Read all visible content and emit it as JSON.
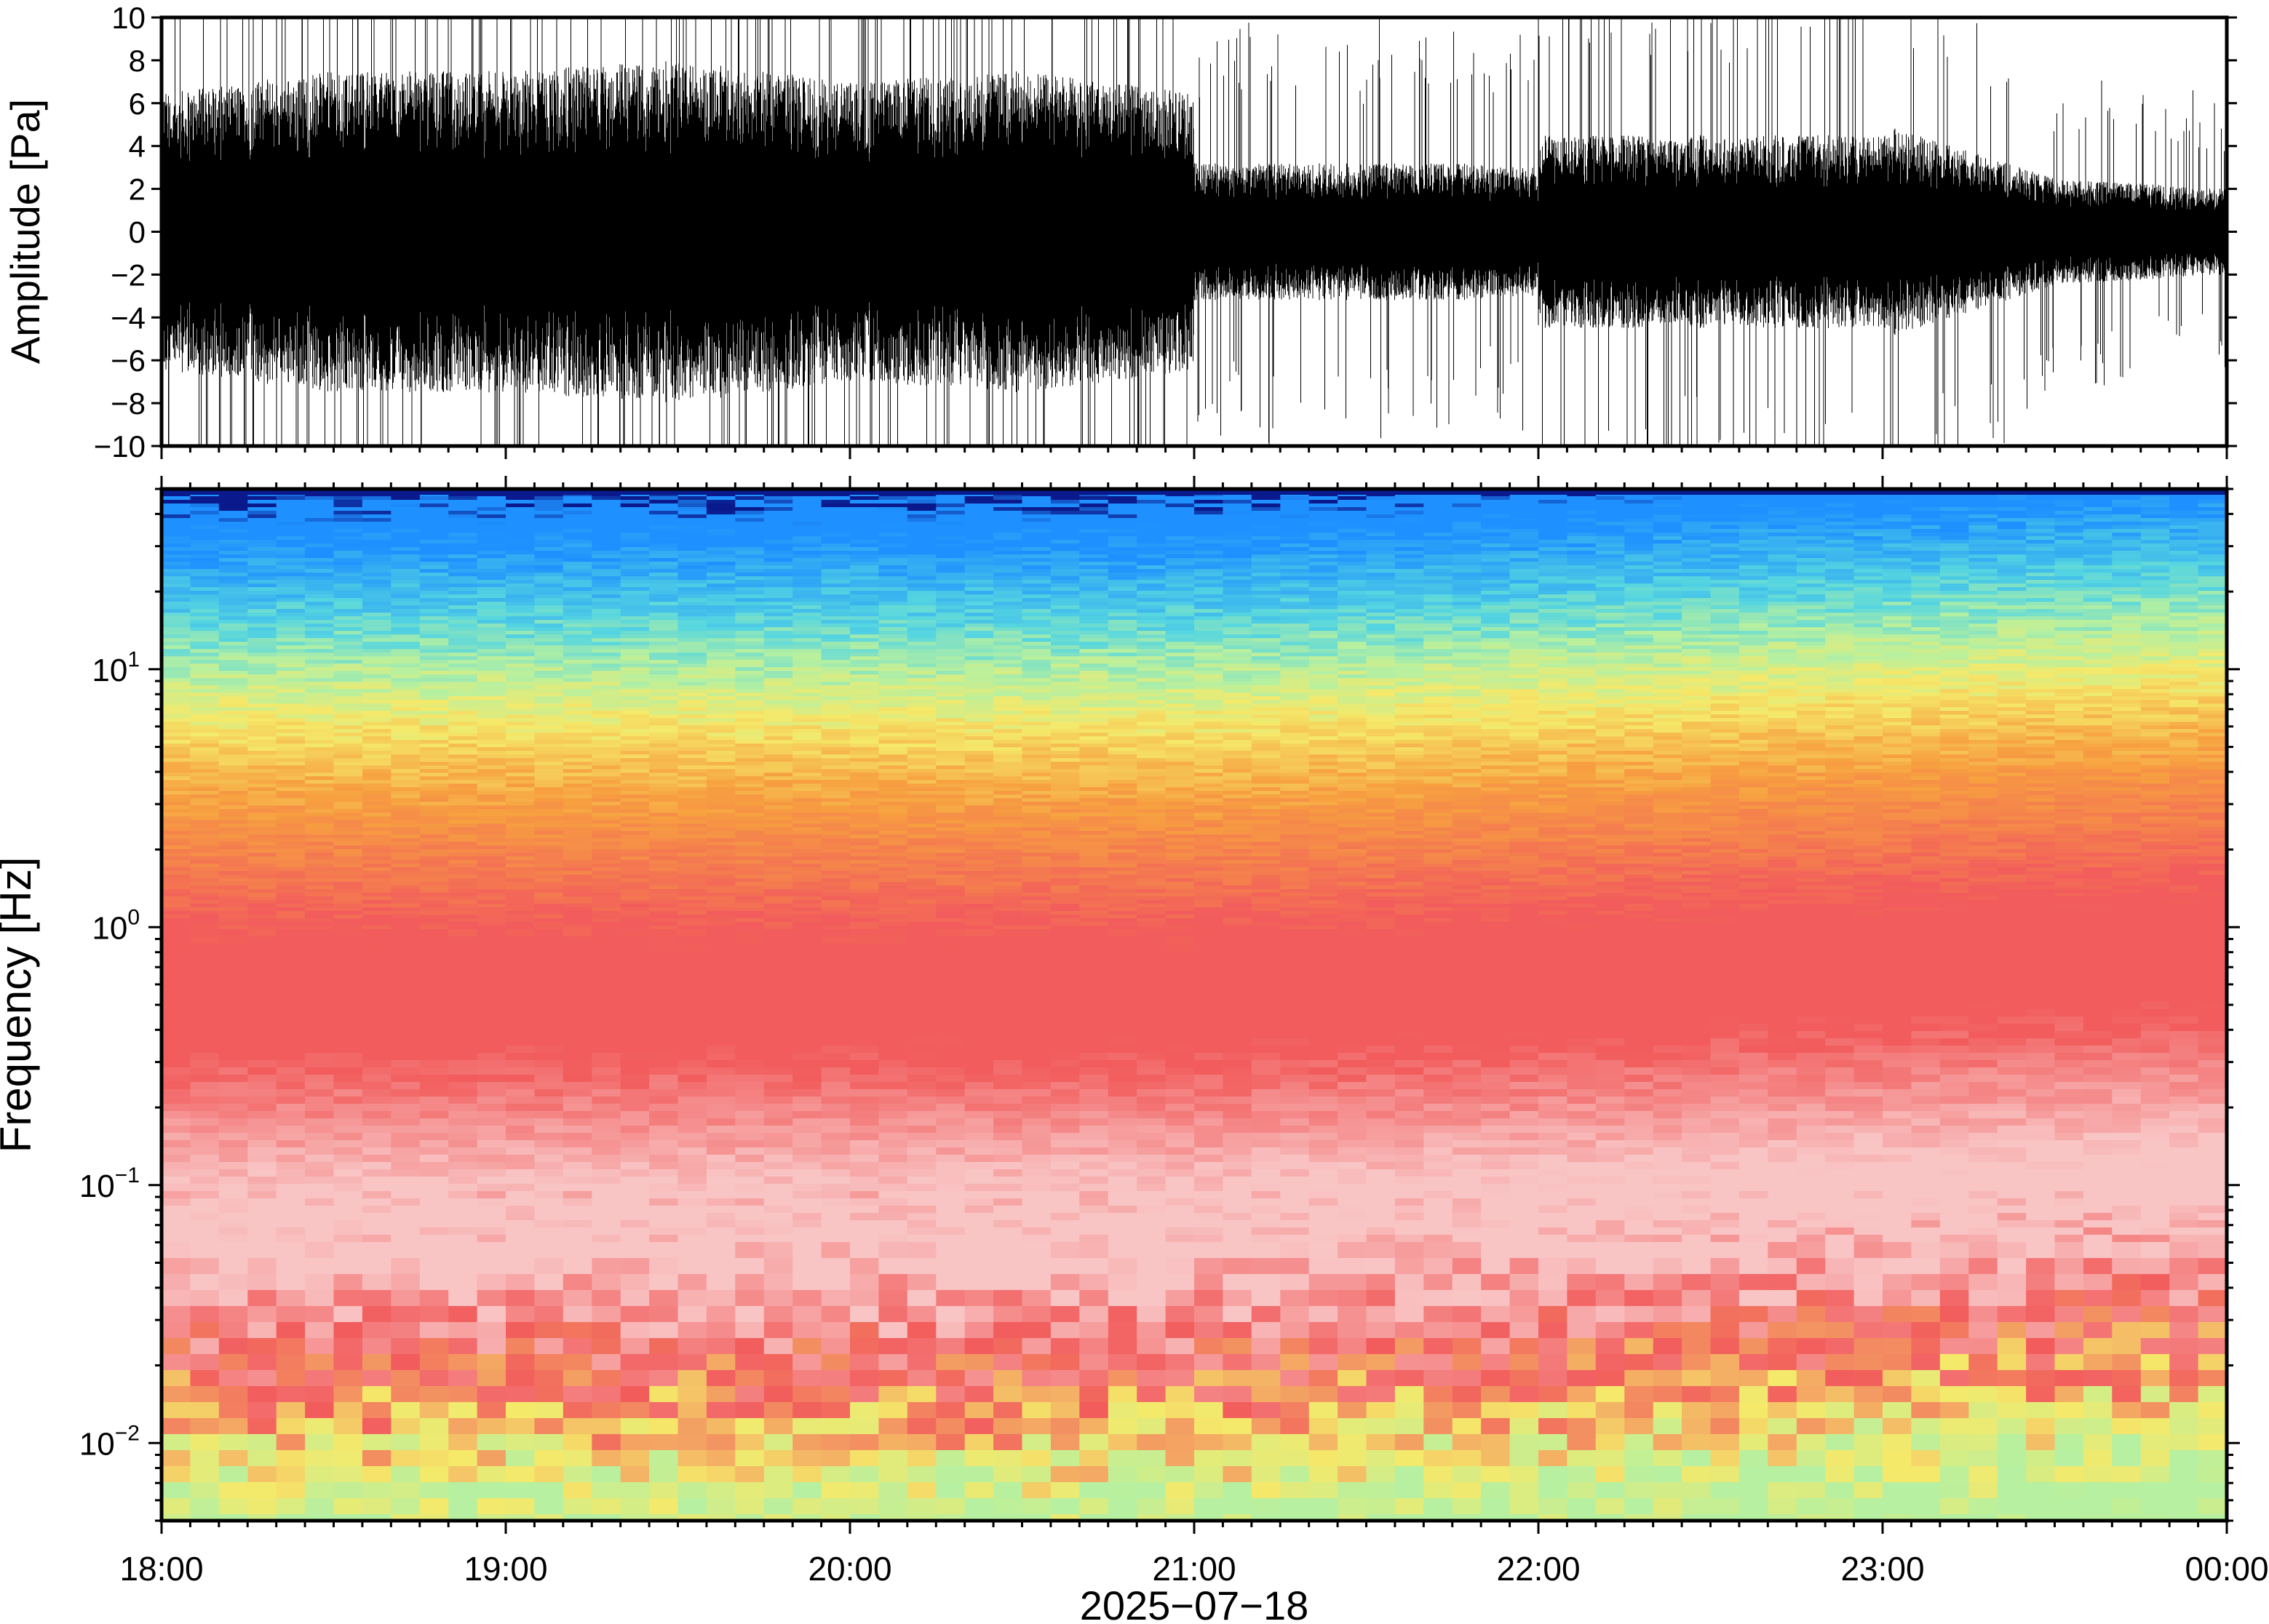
{
  "chart_data": [
    {
      "type": "line",
      "title": "",
      "xlabel": "",
      "ylabel": "Amplitude [Pa]",
      "ylim": [
        -10,
        10
      ],
      "xlim": [
        "2025-07-18 18:00",
        "2025-07-19 00:00"
      ],
      "yticks": [
        "10",
        "8",
        "6",
        "4",
        "2",
        "0",
        "−2",
        "−4",
        "−6",
        "−8",
        "−10"
      ],
      "yticks_values": [
        10,
        8,
        6,
        4,
        2,
        0,
        -2,
        -4,
        -6,
        -8,
        -10
      ],
      "grid": false,
      "series": [
        {
          "color": "#000000",
          "envelope_description_hours": [
            0,
            0.5,
            1,
            1.5,
            2,
            2.5,
            3,
            3.5,
            4,
            4.5,
            5,
            5.5,
            6
          ],
          "envelope_abs_amplitude": [
            6.5,
            7.5,
            7.5,
            8.0,
            7.0,
            7.5,
            6.5,
            3.5,
            3.0,
            5.5,
            5.0,
            2.5,
            2.0
          ]
        }
      ]
    },
    {
      "type": "heatmap",
      "title": "",
      "xlabel": "2025−07−18",
      "ylabel": "Frequency [Hz]",
      "yscale": "log",
      "ylim": [
        0.005,
        50
      ],
      "yticks_values": [
        0.01,
        0.1,
        1,
        10
      ],
      "yticks": [
        {
          "base": "10",
          "exp": "−2"
        },
        {
          "base": "10",
          "exp": "−1"
        },
        {
          "base": "10",
          "exp": "0"
        },
        {
          "base": "10",
          "exp": "1"
        }
      ],
      "xticks": [
        "18:00",
        "19:00",
        "20:00",
        "21:00",
        "22:00",
        "23:00",
        "00:00"
      ],
      "xticks_hours": [
        0,
        1,
        2,
        3,
        4,
        5,
        6
      ],
      "colormap": "rainbow",
      "colors": {
        "dark_blue": "#0a1a8c",
        "blue": "#1e90ff",
        "cyan": "#56d6e0",
        "green": "#b6f0a0",
        "yellow": "#f5e96a",
        "orange": "#f7a040",
        "red": "#f25c5c",
        "pink": "#f9c4c4"
      },
      "band_profile_log10f": [
        -2.3,
        -2.0,
        -1.7,
        -1.3,
        -1.0,
        -0.5,
        0.0,
        0.5,
        0.8,
        1.0,
        1.2,
        1.5,
        1.65,
        1.7
      ],
      "band_profile_colors": [
        "green",
        "yellow",
        "red",
        "pink",
        "pink",
        "red",
        "red",
        "orange",
        "yellow",
        "green",
        "cyan",
        "blue",
        "blue",
        "dark_blue"
      ]
    }
  ]
}
